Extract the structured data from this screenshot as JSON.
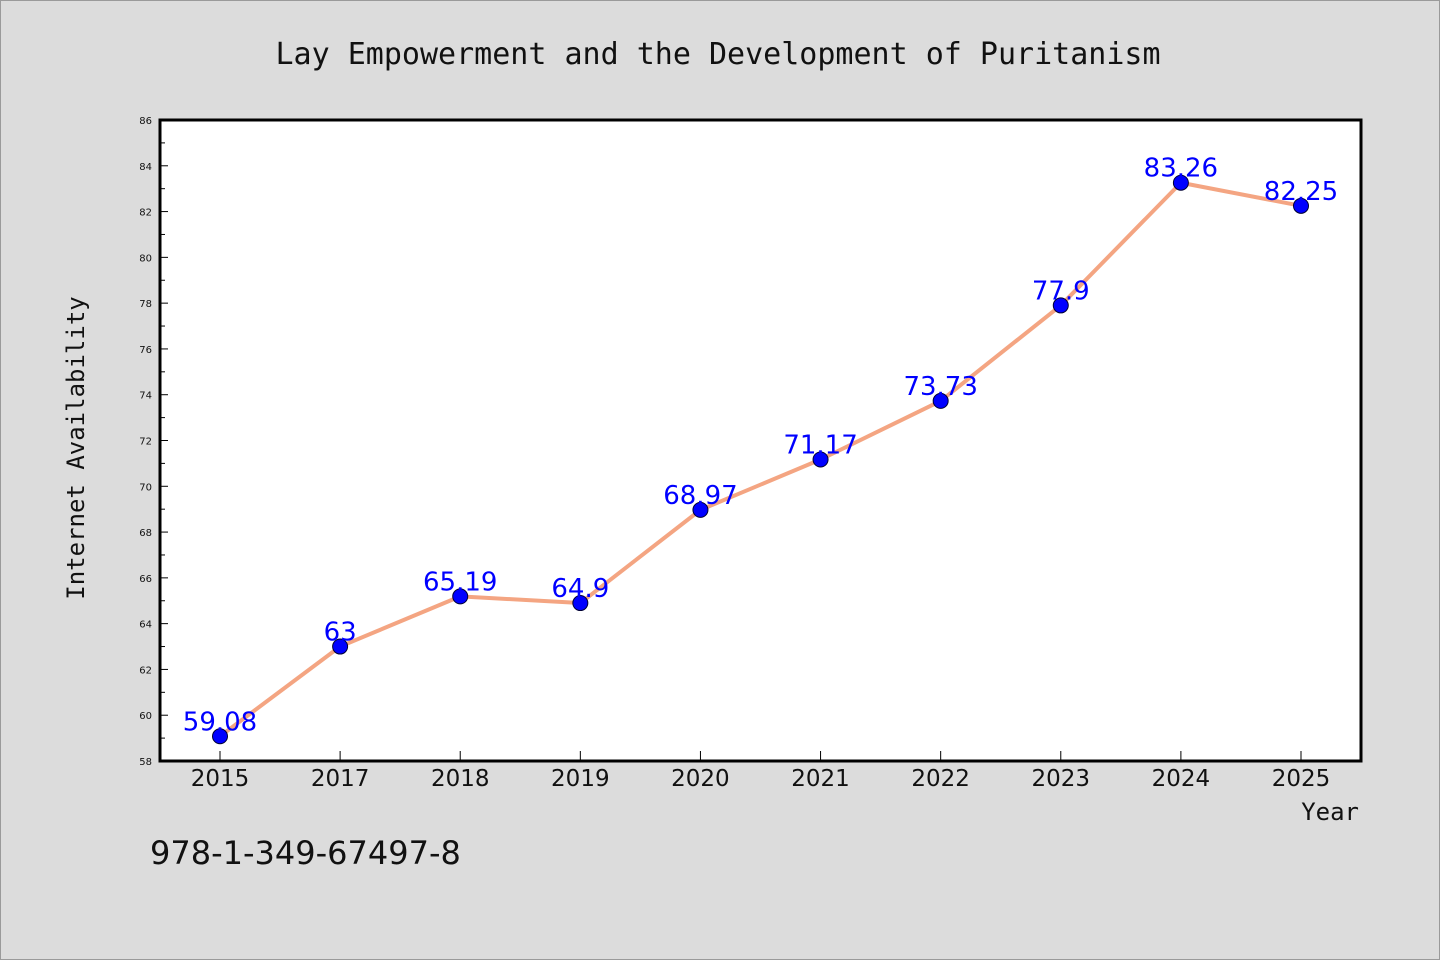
{
  "chart_data": {
    "type": "line",
    "title": "Lay Empowerment and the Development of Puritanism",
    "xlabel": "Year",
    "ylabel": "Internet Availability",
    "categories": [
      "2015",
      "2017",
      "2018",
      "2019",
      "2020",
      "2021",
      "2022",
      "2023",
      "2024",
      "2025"
    ],
    "series": [
      {
        "values": [
          59.08,
          63,
          65.19,
          64.9,
          68.97,
          71.17,
          73.73,
          77.9,
          83.26,
          82.25
        ],
        "labels": [
          "59.08",
          "63",
          "65.19",
          "64.9",
          "68.97",
          "71.17",
          "73.73",
          "77.9",
          "83.26",
          "82.25"
        ],
        "line_color": "#f4a582",
        "marker_color": "#0000ff"
      }
    ],
    "ylim": [
      58,
      86
    ],
    "yticks": [
      "58",
      "60",
      "62",
      "64",
      "66",
      "68",
      "70",
      "72",
      "74",
      "76",
      "78",
      "80",
      "82",
      "84",
      "86"
    ],
    "grid": false,
    "legend": "none"
  },
  "annotation": {
    "isbn": "978-1-349-67497-8"
  },
  "colors": {
    "background": "#dcdcdc",
    "plot_background": "#ffffff",
    "line": "#f4a582",
    "marker": "#0000ff",
    "label": "#0000ff"
  }
}
